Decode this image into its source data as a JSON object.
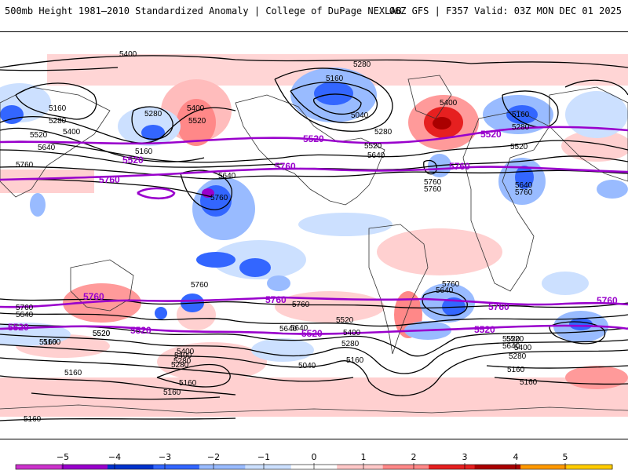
{
  "header": {
    "title": "500mb Height 1981–2010 Standardized Anomaly | College of DuPage NEXLAB",
    "run_info": "06Z GFS | F357 Valid: 03Z MON DEC 01 2025"
  },
  "contour_labels": {
    "black": [
      "5400",
      "5280",
      "5160",
      "5160",
      "5280",
      "5400",
      "5520",
      "5160",
      "5040",
      "5280",
      "5280",
      "5400",
      "5520",
      "5640",
      "5760",
      "5520",
      "5640",
      "5160",
      "5280",
      "5400",
      "5520",
      "5640",
      "5760",
      "5640",
      "5760",
      "5640",
      "5760",
      "5160",
      "5280",
      "5400",
      "5520",
      "5640",
      "5760",
      "5760",
      "5640",
      "5760",
      "5520",
      "5400",
      "5280",
      "5160",
      "5040",
      "5160",
      "5520",
      "5640",
      "5760",
      "5640",
      "5520",
      "5400",
      "5280",
      "5160",
      "5160",
      "5160",
      "5280",
      "5400",
      "5520",
      "5160",
      "5160",
      "5160",
      "5760"
    ],
    "purple": [
      "5520",
      "5520",
      "5760",
      "5760",
      "5520",
      "5760",
      "5520",
      "5760",
      "5760",
      "5760",
      "5760",
      "5520",
      "5520",
      "5520"
    ]
  },
  "colorbar": {
    "ticks": [
      "−5",
      "−4",
      "−3",
      "−2",
      "−1",
      "0",
      "1",
      "2",
      "3",
      "4",
      "5"
    ],
    "colors": {
      "m5": "#cc33cc",
      "m4": "#9900cc",
      "m3": "#0033cc",
      "m2": "#3366ff",
      "m1": "#99bbff",
      "m0": "#cce0ff",
      "p0": "#ffffff",
      "p1": "#ffc8c8",
      "p2": "#ff8888",
      "p3": "#e62020",
      "p4": "#aa0000",
      "p5": "#ff9900",
      "p6": "#ffcc00"
    }
  }
}
